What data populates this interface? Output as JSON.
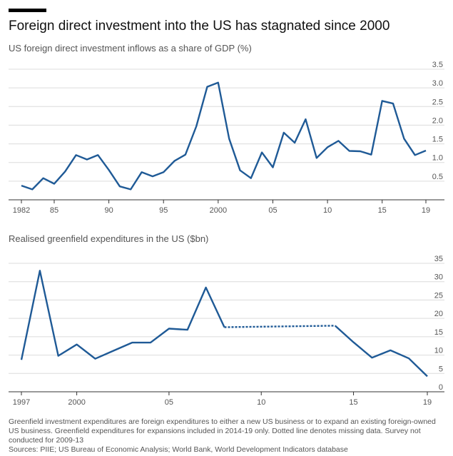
{
  "header": {
    "title": "Foreign direct investment into the US has stagnated since 2000",
    "accent_color": "#000000"
  },
  "line_color": "#1f5a96",
  "footnote": {
    "note": "Greenfield investment expenditures are foreign expenditures to either a new US business or to expand an existing foreign-owned US business. Greenfield expenditures for expansions included in 2014-19 only. Dotted line denotes missing data. Survey not conducted for 2009-13",
    "sources": "Sources: PIIE; US Bureau of Economic Analysis; World Bank, World Development Indicators database"
  },
  "chart_data": [
    {
      "type": "line",
      "title": "US foreign direct investment inflows as a share of GDP (%)",
      "xlabel": "",
      "ylabel": "",
      "xlim": [
        1982,
        2019
      ],
      "ylim": [
        0,
        3.5
      ],
      "x_ticks": [
        {
          "value": 1982,
          "label": "1982"
        },
        {
          "value": 1985,
          "label": "85"
        },
        {
          "value": 1990,
          "label": "90"
        },
        {
          "value": 1995,
          "label": "95"
        },
        {
          "value": 2000,
          "label": "2000"
        },
        {
          "value": 2005,
          "label": "05"
        },
        {
          "value": 2010,
          "label": "10"
        },
        {
          "value": 2015,
          "label": "15"
        },
        {
          "value": 2019,
          "label": "19"
        }
      ],
      "y_ticks": [
        {
          "value": 0.5,
          "label": "0.5"
        },
        {
          "value": 1.0,
          "label": "1.0"
        },
        {
          "value": 1.5,
          "label": "1.5"
        },
        {
          "value": 2.0,
          "label": "2.0"
        },
        {
          "value": 2.5,
          "label": "2.5"
        },
        {
          "value": 3.0,
          "label": "3.0"
        },
        {
          "value": 3.5,
          "label": "3.5"
        }
      ],
      "grid": true,
      "series": [
        {
          "x": [
            1982,
            1983,
            1984,
            1985,
            1986,
            1987,
            1988,
            1989,
            1990,
            1991,
            1992,
            1993,
            1994,
            1995,
            1996,
            1997,
            1998,
            1999,
            2000,
            2001,
            2002,
            2003,
            2004,
            2005,
            2006,
            2007,
            2008,
            2009,
            2010,
            2011,
            2012,
            2013,
            2014,
            2015,
            2016,
            2017,
            2018,
            2019
          ],
          "y": [
            0.38,
            0.28,
            0.58,
            0.43,
            0.76,
            1.2,
            1.08,
            1.2,
            0.8,
            0.36,
            0.28,
            0.74,
            0.63,
            0.74,
            1.04,
            1.21,
            1.97,
            3.03,
            3.14,
            1.64,
            0.79,
            0.58,
            1.27,
            0.87,
            1.8,
            1.53,
            2.16,
            1.12,
            1.41,
            1.58,
            1.31,
            1.3,
            1.21,
            2.65,
            2.58,
            1.64,
            1.2,
            1.32
          ]
        }
      ]
    },
    {
      "type": "line",
      "title": "Realised greenfield expenditures in the US ($bn)",
      "xlabel": "",
      "ylabel": "",
      "xlim": [
        1997,
        2019
      ],
      "ylim": [
        0,
        35
      ],
      "x_ticks": [
        {
          "value": 1997,
          "label": "1997"
        },
        {
          "value": 2000,
          "label": "2000"
        },
        {
          "value": 2005,
          "label": "05"
        },
        {
          "value": 2010,
          "label": "10"
        },
        {
          "value": 2015,
          "label": "15"
        },
        {
          "value": 2019,
          "label": "19"
        }
      ],
      "y_ticks": [
        {
          "value": 0,
          "label": "0"
        },
        {
          "value": 5,
          "label": "5"
        },
        {
          "value": 10,
          "label": "10"
        },
        {
          "value": 15,
          "label": "15"
        },
        {
          "value": 20,
          "label": "20"
        },
        {
          "value": 25,
          "label": "25"
        },
        {
          "value": 30,
          "label": "30"
        },
        {
          "value": 35,
          "label": "35"
        }
      ],
      "grid": true,
      "series": [
        {
          "style": "solid",
          "x": [
            1997,
            1998,
            1999,
            2000,
            2001,
            2002,
            2003,
            2004,
            2005,
            2006,
            2007,
            2008
          ],
          "y": [
            8.7,
            33.0,
            9.8,
            12.9,
            9.0,
            11.2,
            13.4,
            13.4,
            17.2,
            16.9,
            28.4,
            17.6
          ]
        },
        {
          "style": "dotted",
          "x": [
            2008,
            2014
          ],
          "y": [
            17.6,
            18.0
          ]
        },
        {
          "style": "solid",
          "x": [
            2014,
            2015,
            2016,
            2017,
            2018,
            2019
          ],
          "y": [
            18.0,
            13.5,
            9.3,
            11.3,
            9.1,
            4.2
          ]
        }
      ]
    }
  ]
}
